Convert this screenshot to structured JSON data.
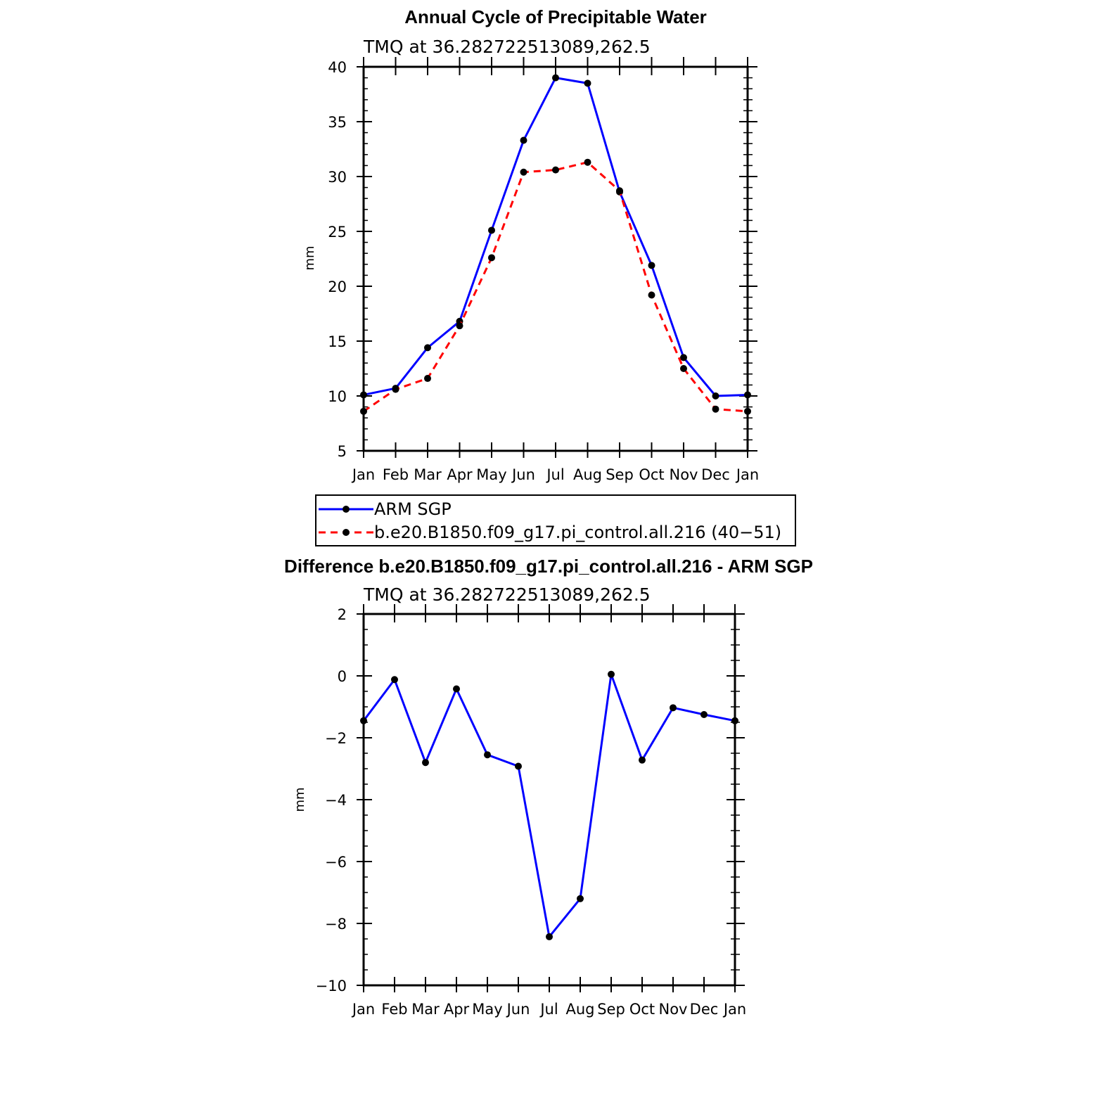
{
  "chart_data": [
    {
      "type": "line",
      "title": "Annual Cycle of Precipitable Water",
      "subtitle": "TMQ at 36.282722513089,262.5",
      "ylabel": "mm",
      "xlabel": "",
      "categories": [
        "Jan",
        "Feb",
        "Mar",
        "Apr",
        "May",
        "Jun",
        "Jul",
        "Aug",
        "Sep",
        "Oct",
        "Nov",
        "Dec",
        "Jan"
      ],
      "ylim": [
        5,
        40
      ],
      "yticks": [
        "5",
        "10",
        "15",
        "20",
        "25",
        "30",
        "35",
        "40"
      ],
      "series": [
        {
          "name": "ARM SGP",
          "color": "#0000ff",
          "dashed": false,
          "values": [
            10.1,
            10.7,
            14.4,
            16.8,
            25.1,
            33.3,
            39.0,
            38.5,
            28.6,
            21.9,
            13.5,
            10.0,
            10.1
          ]
        },
        {
          "name": "b.e20.B1850.f09_g17.pi_control.all.216 (40−51)",
          "color": "#ff0000",
          "dashed": true,
          "values": [
            8.6,
            10.6,
            11.6,
            16.4,
            22.6,
            30.4,
            30.6,
            31.3,
            28.7,
            19.2,
            12.5,
            8.8,
            8.6
          ]
        }
      ],
      "legend": {
        "position": "bottom",
        "entries": [
          "ARM SGP",
          "b.e20.B1850.f09_g17.pi_control.all.216 (40−51)"
        ]
      }
    },
    {
      "type": "line",
      "title": "Difference b.e20.B1850.f09_g17.pi_control.all.216 - ARM SGP",
      "subtitle": "TMQ at 36.282722513089,262.5",
      "ylabel": "mm",
      "xlabel": "",
      "categories": [
        "Jan",
        "Feb",
        "Mar",
        "Apr",
        "May",
        "Jun",
        "Jul",
        "Aug",
        "Sep",
        "Oct",
        "Nov",
        "Dec",
        "Jan"
      ],
      "ylim": [
        -10,
        2
      ],
      "yticks": [
        "−10",
        "−8",
        "−6",
        "−4",
        "−2",
        "0",
        "2"
      ],
      "series": [
        {
          "name": "Difference",
          "color": "#0000ff",
          "dashed": false,
          "values": [
            -1.45,
            -0.12,
            -2.8,
            -0.42,
            -2.55,
            -2.92,
            -8.43,
            -7.2,
            0.05,
            -2.72,
            -1.03,
            -1.25,
            -1.45
          ]
        }
      ]
    }
  ]
}
